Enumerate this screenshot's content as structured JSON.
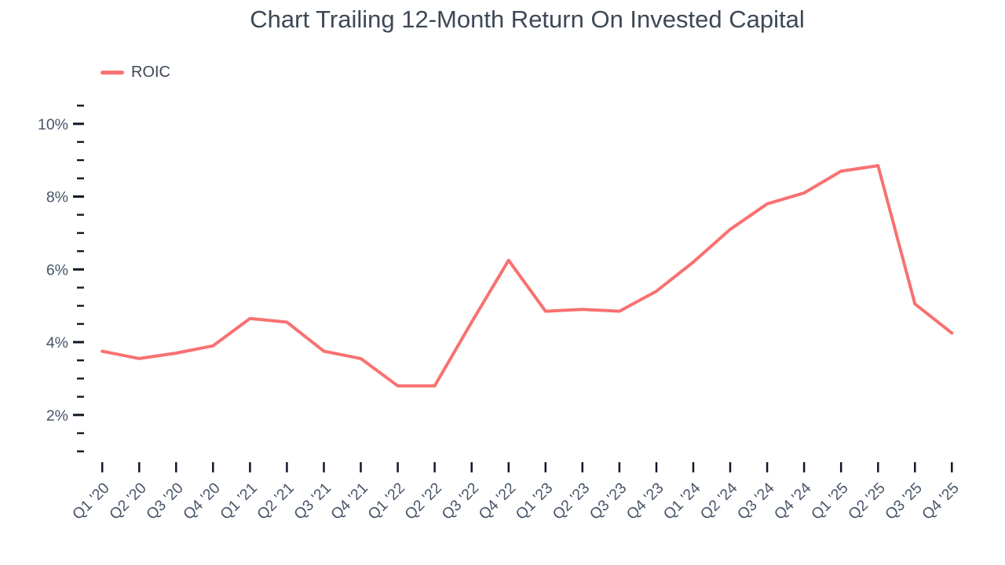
{
  "title": "Chart Trailing 12-Month Return On Invested Capital",
  "legend": {
    "items": [
      {
        "label": "ROIC",
        "color": "#f87171"
      }
    ]
  },
  "colors": {
    "accent": "#f87171",
    "title_text": "#3d4856",
    "axis_label": "#475569",
    "tick": "#111827",
    "background": "#ffffff"
  },
  "chart_data": {
    "type": "line",
    "title": "Chart Trailing 12-Month Return On Invested Capital",
    "categories": [
      "Q1 '20",
      "Q2 '20",
      "Q3 '20",
      "Q4 '20",
      "Q1 '21",
      "Q2 '21",
      "Q3 '21",
      "Q4 '21",
      "Q1 '22",
      "Q2 '22",
      "Q3 '22",
      "Q4 '22",
      "Q1 '23",
      "Q2 '23",
      "Q3 '23",
      "Q4 '23",
      "Q1 '24",
      "Q2 '24",
      "Q3 '24",
      "Q4 '24",
      "Q1 '25",
      "Q2 '25",
      "Q3 '25",
      "Q4 '25"
    ],
    "series": [
      {
        "name": "ROIC",
        "color": "#f87171",
        "values": [
          3.75,
          3.55,
          3.7,
          3.9,
          4.65,
          4.55,
          3.75,
          3.55,
          2.8,
          2.8,
          4.55,
          6.25,
          4.85,
          4.9,
          4.85,
          5.4,
          6.2,
          7.1,
          7.8,
          8.1,
          8.7,
          8.85,
          5.05,
          4.25
        ]
      }
    ],
    "xlabel": "",
    "ylabel": "",
    "y_axis": {
      "unit": "%",
      "major_ticks": [
        2,
        4,
        6,
        8,
        10
      ],
      "major_tick_labels": [
        "2%",
        "4%",
        "6%",
        "8%",
        "10%"
      ],
      "minor_tick_step": 0.5,
      "range": [
        1,
        10.5
      ]
    },
    "x_tick_rotation": -45,
    "legend_position": "top-left",
    "grid": false
  }
}
